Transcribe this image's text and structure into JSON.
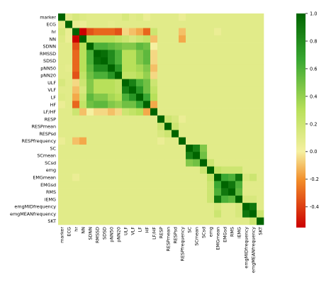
{
  "chart_data": {
    "type": "heatmap",
    "title": "",
    "xlabel": "",
    "ylabel": "",
    "grid": false,
    "variables": [
      "marker",
      "ECG",
      "hr",
      "NN",
      "SDNN",
      "RMSSD",
      "SDSD",
      "pNN50",
      "pNN20",
      "ULF",
      "VLF",
      "LF",
      "HF",
      "LF/HF",
      "RESP",
      "RESPmean",
      "RESPsd",
      "RESPfrequency",
      "SC",
      "SCmean",
      "SCsd",
      "emg",
      "EMGmean",
      "EMGsd",
      "RMS",
      "iEMG",
      "emgMIDfrequency",
      "emgMEANfrequency",
      "SKT"
    ],
    "colorbar": {
      "min": -0.55,
      "max": 1.0,
      "ticks": [
        -0.4,
        -0.2,
        0.0,
        0.2,
        0.4,
        0.6,
        0.8,
        1.0
      ],
      "tick_labels": [
        "-0.4",
        "-0.2",
        "0.0",
        "0.2",
        "0.4",
        "0.6",
        "0.8",
        "1.0"
      ],
      "colors": [
        "#cc0000",
        "#f5f0a0",
        "#006400"
      ]
    },
    "default_value": 0.1,
    "cells": [
      [
        0,
        2,
        0.15
      ],
      [
        0,
        3,
        0.12
      ],
      [
        0,
        9,
        0.15
      ],
      [
        0,
        10,
        0.1
      ],
      [
        0,
        11,
        0.12
      ],
      [
        0,
        12,
        0.05
      ],
      [
        0,
        14,
        0.1
      ],
      [
        0,
        17,
        0.05
      ],
      [
        1,
        2,
        0.06
      ],
      [
        1,
        3,
        0.05
      ],
      [
        1,
        7,
        0.08
      ],
      [
        2,
        3,
        -0.55
      ],
      [
        2,
        4,
        -0.35
      ],
      [
        2,
        5,
        -0.3
      ],
      [
        2,
        6,
        -0.3
      ],
      [
        2,
        7,
        -0.3
      ],
      [
        2,
        8,
        -0.35
      ],
      [
        2,
        9,
        -0.05
      ],
      [
        2,
        10,
        -0.1
      ],
      [
        2,
        11,
        -0.15
      ],
      [
        2,
        12,
        -0.3
      ],
      [
        2,
        13,
        0.2
      ],
      [
        2,
        17,
        -0.1
      ],
      [
        2,
        22,
        0.05
      ],
      [
        3,
        4,
        0.3
      ],
      [
        3,
        5,
        0.3
      ],
      [
        3,
        6,
        0.3
      ],
      [
        3,
        7,
        0.3
      ],
      [
        3,
        8,
        0.25
      ],
      [
        3,
        9,
        0.2
      ],
      [
        3,
        10,
        0.15
      ],
      [
        3,
        11,
        0.2
      ],
      [
        3,
        12,
        0.25
      ],
      [
        3,
        13,
        -0.1
      ],
      [
        3,
        17,
        -0.15
      ],
      [
        4,
        5,
        0.6
      ],
      [
        4,
        6,
        0.6
      ],
      [
        4,
        7,
        0.55
      ],
      [
        4,
        8,
        0.5
      ],
      [
        4,
        9,
        0.45
      ],
      [
        4,
        10,
        0.45
      ],
      [
        4,
        11,
        0.55
      ],
      [
        4,
        12,
        0.5
      ],
      [
        4,
        13,
        0.0
      ],
      [
        5,
        6,
        0.95
      ],
      [
        5,
        7,
        0.8
      ],
      [
        5,
        8,
        0.6
      ],
      [
        5,
        9,
        0.3
      ],
      [
        5,
        10,
        0.3
      ],
      [
        5,
        11,
        0.45
      ],
      [
        5,
        12,
        0.55
      ],
      [
        5,
        13,
        -0.05
      ],
      [
        6,
        7,
        0.8
      ],
      [
        6,
        8,
        0.6
      ],
      [
        6,
        9,
        0.3
      ],
      [
        6,
        10,
        0.3
      ],
      [
        6,
        11,
        0.45
      ],
      [
        6,
        12,
        0.55
      ],
      [
        6,
        13,
        -0.05
      ],
      [
        7,
        8,
        0.75
      ],
      [
        7,
        9,
        0.3
      ],
      [
        7,
        10,
        0.3
      ],
      [
        7,
        11,
        0.35
      ],
      [
        7,
        12,
        0.45
      ],
      [
        7,
        13,
        -0.1
      ],
      [
        8,
        9,
        0.25
      ],
      [
        8,
        10,
        0.25
      ],
      [
        8,
        11,
        0.3
      ],
      [
        8,
        12,
        0.4
      ],
      [
        8,
        13,
        -0.05
      ],
      [
        9,
        10,
        0.85
      ],
      [
        9,
        11,
        0.6
      ],
      [
        9,
        12,
        0.5
      ],
      [
        9,
        13,
        0.2
      ],
      [
        10,
        11,
        0.75
      ],
      [
        10,
        12,
        0.5
      ],
      [
        10,
        13,
        0.25
      ],
      [
        11,
        12,
        0.65
      ],
      [
        11,
        13,
        0.3
      ],
      [
        12,
        13,
        -0.15
      ],
      [
        14,
        15,
        0.2
      ],
      [
        14,
        16,
        0.15
      ],
      [
        14,
        17,
        0.05
      ],
      [
        15,
        16,
        0.2
      ],
      [
        15,
        17,
        0.1
      ],
      [
        16,
        17,
        0.1
      ],
      [
        18,
        19,
        0.85
      ],
      [
        18,
        20,
        0.45
      ],
      [
        19,
        20,
        0.5
      ],
      [
        20,
        21,
        0.2
      ],
      [
        21,
        22,
        0.25
      ],
      [
        21,
        23,
        0.2
      ],
      [
        21,
        24,
        0.2
      ],
      [
        21,
        25,
        0.2
      ],
      [
        22,
        23,
        0.65
      ],
      [
        22,
        24,
        0.6
      ],
      [
        22,
        25,
        0.9
      ],
      [
        22,
        26,
        0.15
      ],
      [
        22,
        27,
        0.2
      ],
      [
        23,
        24,
        0.9
      ],
      [
        23,
        25,
        0.6
      ],
      [
        24,
        25,
        0.55
      ],
      [
        25,
        26,
        0.15
      ],
      [
        25,
        27,
        0.15
      ],
      [
        26,
        27,
        0.9
      ],
      [
        27,
        28,
        0.2
      ]
    ]
  }
}
